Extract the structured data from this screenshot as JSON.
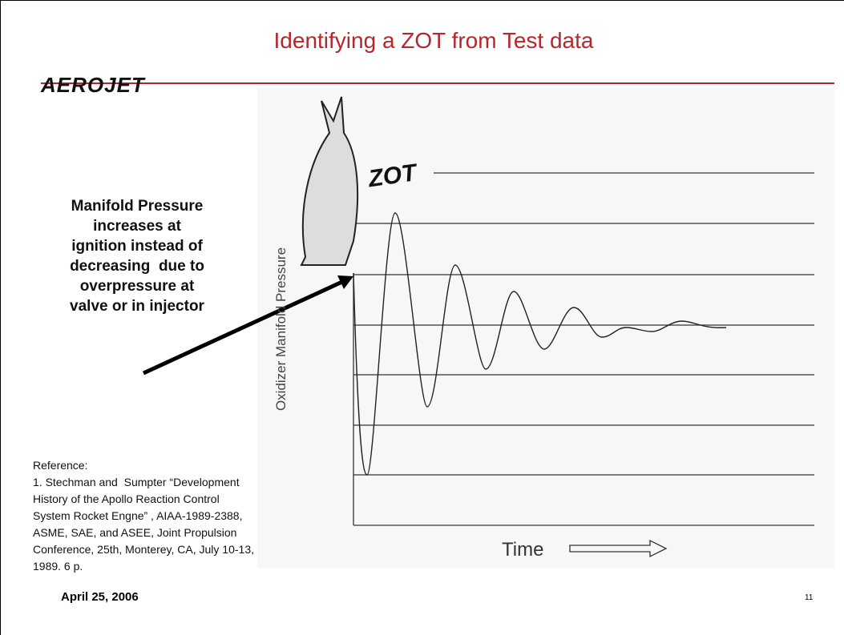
{
  "header": {
    "title": "Identifying a ZOT from Test data",
    "logo": "AEROJET"
  },
  "callout": [
    "Manifold Pressure",
    "increases at",
    "ignition instead of",
    "decreasing  due to",
    "overpressure at",
    "valve or in injector"
  ],
  "figure": {
    "y_label": "Oxidizer Manifold Pressure",
    "x_label": "Time",
    "annotation": "ZOT"
  },
  "reference": {
    "heading": "Reference:",
    "lines": [
      "1. Stechman and  Sumpter “Development",
      "History of the Apollo Reaction Control",
      "System Rocket Engne” , AIAA-1989-2388,",
      "ASME, SAE, and ASEE, Joint Propulsion",
      "Conference, 25th, Monterey, CA, July 10-13,",
      "1989. 6 p."
    ]
  },
  "footer": {
    "date": "April 25, 2006",
    "page": "11"
  }
}
